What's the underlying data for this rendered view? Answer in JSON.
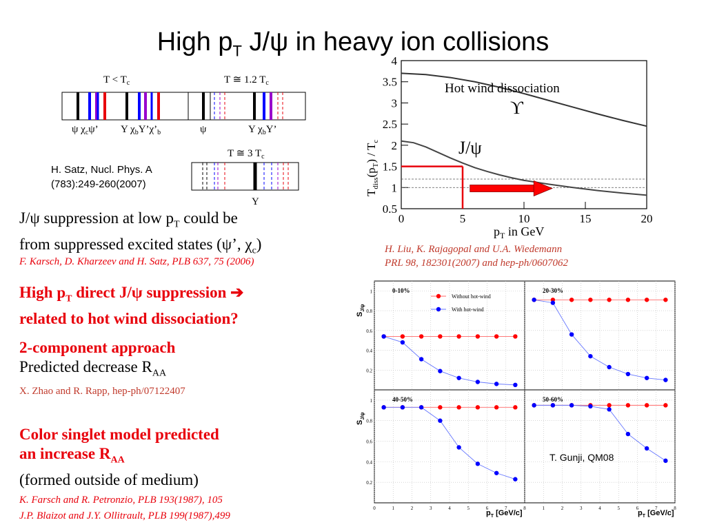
{
  "title": {
    "prefix": "High p",
    "sub": "T",
    "suffix": " J/ψ in heavy ion collisions"
  },
  "spectra": {
    "label1": "T < T",
    "label1_sub": "c",
    "label2": "T ≅ 1.2 T",
    "label2_sub": "c",
    "label3": "T ≅ 3 T",
    "label3_sub": "c",
    "box1_states": "ψ χ",
    "box1_states_c": "c",
    "box1_states_tail": "ψ’",
    "box1_bottom": "Υ χ",
    "box1_bottom_b": "b",
    "box1_bottom_tail": "Υ’χ’",
    "box1_bottom_b2": "b",
    "box2_psi": "ψ",
    "box2_bottom": "Υ χ",
    "box2_bottom_b": "b",
    "box2_bottom_tail": "Υ’",
    "box3_bottom": "Υ"
  },
  "satz_ref": {
    "line1": "H. Satz, Nucl. Phys. A",
    "line2": "(783):249-260(2007)"
  },
  "hot_wind_plot": {
    "annotation": "Hot wind dissociation",
    "upsilon_label": "ϒ",
    "jpsi_label": "J/ψ",
    "ylabel": "T",
    "ylabel_sub": "diss",
    "ylabel_tail": "(p",
    "ylabel_T": "T",
    "ylabel_end": ") / T",
    "ylabel_c": "c",
    "xlabel_p": "p",
    "xlabel_T": "T",
    "xlabel_tail": " in GeV",
    "xticks": [
      "0",
      "5",
      "10",
      "15",
      "20"
    ],
    "yticks": [
      "0.5",
      "1",
      "1.5",
      "2",
      "2.5",
      "3",
      "3.5",
      "4"
    ]
  },
  "liu_ref": {
    "line1": "H. Liu, K. Rajagopal and U.A. Wiedemann",
    "line2": "PRL 98, 182301(2007) and hep-ph/0607062"
  },
  "text_blocks": {
    "supp_line1_a": "J/ψ suppression at low p",
    "supp_line1_sub": "T",
    "supp_line1_b": " could be",
    "supp_line2_a": "from suppressed excited states (ψ’, χ",
    "supp_line2_sub": "c",
    "supp_line2_b": ")",
    "karsch_ref": "F. Karsch, D. Kharzeev and H. Satz, PLB 637, 75 (2006)",
    "high_line1_a": "High p",
    "high_line1_sub": "T",
    "high_line1_b": " direct J/ψ suppression ",
    "arrow": "➔",
    "high_line2": "related to hot wind dissociation?",
    "two_comp": "2-component approach",
    "pred_dec_a": "Predicted decrease R",
    "pred_dec_sub": "AA",
    "zhao_ref": "X. Zhao and R. Rapp, hep-ph/07122407",
    "color_singlet1": "Color singlet model predicted",
    "color_singlet2_a": "an increase R",
    "color_singlet2_sub": "AA",
    "formed_outside": "(formed outside of medium)",
    "farsch_ref": "K. Farsch and R. Petronzio,  PLB 193(1987), 105",
    "blaizot_ref": "J.P. Blaizot and J.Y. Ollitrault, PLB 199(1987),499"
  },
  "gunji_plot": {
    "credit": "T. Gunji, QM08",
    "ylabel": "S",
    "ylabel_sub": "J/ψ",
    "ylabel_sup": "tot",
    "xlabel": "p",
    "xlabel_sub": "T",
    "xlabel_unit": " [GeV/c]",
    "legend_without": "Without hot-wind",
    "legend_with": "With hot-wind",
    "panels": [
      "0-10%",
      "20-30%",
      "40-50%",
      "50-60%"
    ],
    "xticks": [
      "0",
      "1",
      "2",
      "3",
      "4",
      "5",
      "6",
      "7",
      "8"
    ],
    "yticks": [
      "0.2",
      "0.4",
      "0.6",
      "0.8",
      "1"
    ]
  },
  "chart_data": [
    {
      "type": "line",
      "title": "",
      "xlabel": "pT in GeV",
      "ylabel": "Tdiss(pT) / Tc",
      "xlim": [
        0,
        20
      ],
      "ylim": [
        0.5,
        4
      ],
      "series": [
        {
          "name": "ϒ",
          "x": [
            0,
            2,
            4,
            6,
            8,
            10,
            12,
            14,
            16,
            18,
            20
          ],
          "values": [
            3.7,
            3.67,
            3.6,
            3.5,
            3.37,
            3.22,
            3.06,
            2.9,
            2.74,
            2.59,
            2.45
          ]
        },
        {
          "name": "J/ψ",
          "x": [
            0,
            1,
            2,
            3,
            4,
            5,
            6,
            7,
            8,
            9,
            10,
            12,
            14,
            16,
            18,
            20
          ],
          "values": [
            2.1,
            2.06,
            1.96,
            1.83,
            1.7,
            1.58,
            1.47,
            1.38,
            1.3,
            1.23,
            1.17,
            1.08,
            1.0,
            0.93,
            0.87,
            0.82
          ]
        }
      ],
      "reference_lines": [
        1.0,
        1.2
      ],
      "marker": {
        "x": 5,
        "y": 1.5
      }
    },
    {
      "type": "scatter",
      "title": "0-10%",
      "xlabel": "pT [GeV/c]",
      "ylabel": "S tot J/ψ",
      "xlim": [
        0,
        8
      ],
      "ylim": [
        0,
        1.1
      ],
      "x": [
        0.5,
        1.5,
        2.5,
        3.5,
        4.5,
        5.5,
        6.5,
        7.5
      ],
      "series": [
        {
          "name": "Without hot-wind",
          "values": [
            0.54,
            0.54,
            0.54,
            0.54,
            0.54,
            0.54,
            0.54,
            0.54
          ]
        },
        {
          "name": "With hot-wind",
          "values": [
            0.54,
            0.48,
            0.31,
            0.19,
            0.12,
            0.08,
            0.06,
            0.05
          ]
        }
      ]
    },
    {
      "type": "scatter",
      "title": "20-30%",
      "xlabel": "pT [GeV/c]",
      "ylabel": "S tot J/ψ",
      "xlim": [
        0,
        8
      ],
      "ylim": [
        0,
        1.1
      ],
      "x": [
        0.5,
        1.5,
        2.5,
        3.5,
        4.5,
        5.5,
        6.5,
        7.5
      ],
      "series": [
        {
          "name": "Without hot-wind",
          "values": [
            0.91,
            0.91,
            0.91,
            0.91,
            0.91,
            0.91,
            0.91,
            0.91
          ]
        },
        {
          "name": "With hot-wind",
          "values": [
            0.91,
            0.88,
            0.56,
            0.34,
            0.23,
            0.16,
            0.12,
            0.1
          ]
        }
      ]
    },
    {
      "type": "scatter",
      "title": "40-50%",
      "xlabel": "pT [GeV/c]",
      "ylabel": "S tot J/ψ",
      "xlim": [
        0,
        8
      ],
      "ylim": [
        0,
        1.1
      ],
      "x": [
        0.5,
        1.5,
        2.5,
        3.5,
        4.5,
        5.5,
        6.5,
        7.5
      ],
      "series": [
        {
          "name": "Without hot-wind",
          "values": [
            0.93,
            0.93,
            0.93,
            0.93,
            0.93,
            0.93,
            0.93,
            0.93
          ]
        },
        {
          "name": "With hot-wind",
          "values": [
            0.93,
            0.93,
            0.93,
            0.8,
            0.54,
            0.38,
            0.29,
            0.23
          ]
        }
      ]
    },
    {
      "type": "scatter",
      "title": "50-60%",
      "xlabel": "pT [GeV/c]",
      "ylabel": "S tot J/ψ",
      "xlim": [
        0,
        8
      ],
      "ylim": [
        0,
        1.1
      ],
      "x": [
        0.5,
        1.5,
        2.5,
        3.5,
        4.5,
        5.5,
        6.5,
        7.5
      ],
      "series": [
        {
          "name": "Without hot-wind",
          "values": [
            0.95,
            0.95,
            0.95,
            0.95,
            0.95,
            0.95,
            0.95,
            0.95
          ]
        },
        {
          "name": "With hot-wind",
          "values": [
            0.95,
            0.95,
            0.95,
            0.94,
            0.91,
            0.67,
            0.53,
            0.41
          ]
        }
      ]
    }
  ],
  "colors": {
    "red": "#e8000b",
    "blue": "#0000ff",
    "purple": "#9900cc",
    "cite_red": "#c0392b",
    "point_red": "#ff0000",
    "arrow_red": "#ff0000"
  }
}
